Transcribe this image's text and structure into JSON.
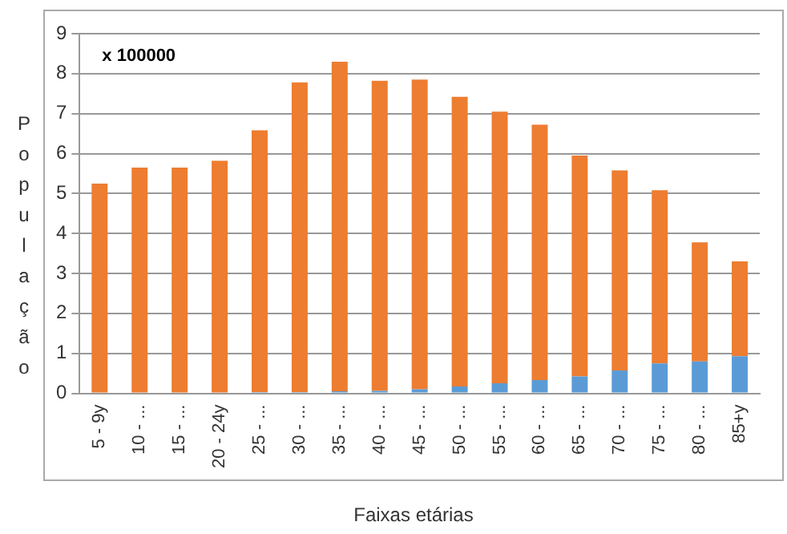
{
  "chart_data": {
    "type": "bar",
    "stacked": true,
    "xlabel": "Faixas etárias",
    "ylabel": "População",
    "annotations": [
      "x 100000"
    ],
    "categories": [
      "5 - 9y",
      "10 - ...",
      "15 - ...",
      "20 - 24y",
      "25 - ...",
      "30 - ...",
      "35 - ...",
      "40 - ...",
      "45 - ...",
      "50 - ...",
      "55 - ...",
      "60 - ...",
      "65 - ...",
      "70 - ...",
      "75 - ...",
      "80 - ...",
      "85+y"
    ],
    "series": [
      {
        "color": "#5b9bd5",
        "values": [
          0.02,
          0.02,
          0.02,
          0.02,
          0.03,
          0.03,
          0.05,
          0.06,
          0.1,
          0.17,
          0.25,
          0.33,
          0.42,
          0.57,
          0.75,
          0.8,
          0.93
        ]
      },
      {
        "color": "#ed7d31",
        "values": [
          5.23,
          5.63,
          5.63,
          5.8,
          6.55,
          7.75,
          8.25,
          7.76,
          7.75,
          7.25,
          6.8,
          6.39,
          5.53,
          5.01,
          4.33,
          2.98,
          2.37
        ]
      }
    ],
    "ylim": [
      0,
      9
    ],
    "yticks": [
      0,
      1,
      2,
      3,
      4,
      5,
      6,
      7,
      8,
      9
    ],
    "grid": "y",
    "legend": false
  }
}
